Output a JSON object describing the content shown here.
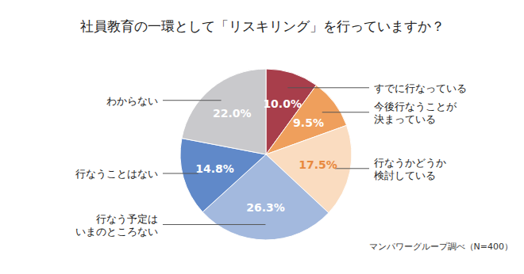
{
  "chart_data": {
    "type": "pie",
    "title": "社員教育の一環として「リスキリング」を行っていますか？",
    "source": "マンパワーグループ調べ（N=400）",
    "categories": [
      "すでに行なっている",
      "今後行なうことが\n決まっている",
      "行なうかどうか\n検討している",
      "行なう予定は\nいまのところない",
      "行なうことはない",
      "わからない"
    ],
    "values": [
      10.0,
      9.5,
      17.5,
      26.3,
      14.8,
      22.0
    ],
    "value_labels": [
      "10.0%",
      "9.5%",
      "17.5%",
      "26.3%",
      "14.8%",
      "22.0%"
    ],
    "colors": [
      "#a83e4b",
      "#ef9f5c",
      "#fadcc0",
      "#a3b9de",
      "#6089c9",
      "#c9c9cc"
    ],
    "data_labels": true
  }
}
